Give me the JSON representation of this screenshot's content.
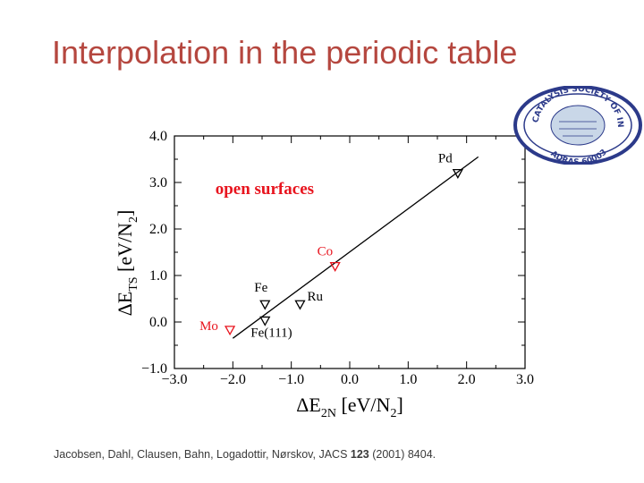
{
  "title": "Interpolation in the periodic table",
  "citation": {
    "authors": "Jacobsen, Dahl, Clausen, Bahn, Logadottir, Nørskov, JACS",
    "volume": "123",
    "rest": "(2001) 8404."
  },
  "logo": {
    "name": "the-catalysis-society-of-india-seal",
    "text_top": "THE CATALYSIS SOCIETY OF INDIA",
    "text_bottom": "MADRAS 600036",
    "text_center": "Department of Chemistry Indian Institute of Technology"
  },
  "chart_data": {
    "type": "scatter",
    "xlim": [
      -3.0,
      3.0
    ],
    "ylim": [
      -1.0,
      4.0
    ],
    "xticks": [
      "−3.0",
      "−2.0",
      "−1.0",
      "0.0",
      "1.0",
      "2.0",
      "3.0"
    ],
    "xtick_values": [
      -3,
      -2,
      -1,
      0,
      1,
      2,
      3
    ],
    "yticks": [
      "−1.0",
      "0.0",
      "1.0",
      "2.0",
      "3.0",
      "4.0"
    ],
    "ytick_values": [
      -1,
      0,
      1,
      2,
      3,
      4
    ],
    "xlabel_main": "ΔE",
    "xlabel_sub": "2N",
    "xlabel_unit": "[eV/N",
    "xlabel_unit_sub": "2",
    "xlabel_close": "]",
    "ylabel_main": "ΔE",
    "ylabel_sub": "TS",
    "ylabel_unit": "[eV/N",
    "ylabel_unit_sub": "2",
    "ylabel_close": "]",
    "annotation": "open surfaces",
    "annotation_color": "#e8141e",
    "marker_color": "#e8141e",
    "marker_black": "#000000",
    "grid": false,
    "points": [
      {
        "label": "Pd",
        "x": 1.85,
        "y": 3.2,
        "color": "black"
      },
      {
        "label": "Co",
        "x": -0.25,
        "y": 1.2,
        "color": "red"
      },
      {
        "label": "Ru",
        "x": -0.85,
        "y": 0.38,
        "color": "black"
      },
      {
        "label": "Fe",
        "x": -1.45,
        "y": 0.38,
        "color": "black"
      },
      {
        "label": "Fe(111)",
        "x": -1.45,
        "y": 0.03,
        "color": "black"
      },
      {
        "label": "Mo",
        "x": -2.05,
        "y": -0.17,
        "color": "red"
      }
    ],
    "fit_line": {
      "x": [
        -2.0,
        2.2
      ],
      "y": [
        -0.35,
        3.55
      ]
    }
  }
}
